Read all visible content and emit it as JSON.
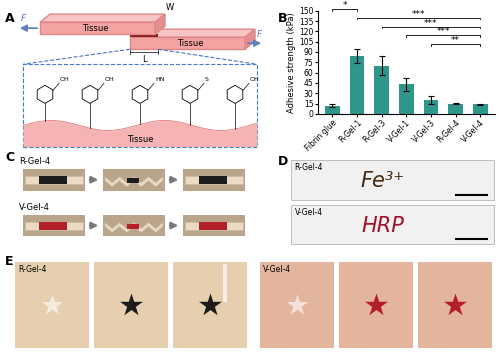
{
  "chart_data": {
    "type": "bar",
    "categories": [
      "Fibrin glue",
      "R-Gel-1",
      "R-Gel-3",
      "V-Gel-1",
      "V-Gel-3",
      "R-Gel-4",
      "V-Gel-4"
    ],
    "values": [
      12,
      84,
      70,
      43,
      20,
      15,
      14
    ],
    "errors": [
      2,
      10,
      14,
      9,
      6,
      1,
      1
    ],
    "color": "#2e968b",
    "ylabel": "Adhesive strength (kPa)",
    "ylim": [
      0,
      150
    ],
    "yticks": [
      0,
      15,
      30,
      45,
      60,
      75,
      90,
      105,
      120,
      135,
      150
    ],
    "significance": [
      {
        "from": "Fibrin glue",
        "to": "R-Gel-1",
        "label": "*"
      },
      {
        "from": "R-Gel-1",
        "to": "V-Gel-4",
        "label": "***"
      },
      {
        "from": "R-Gel-3",
        "to": "V-Gel-4",
        "label": "***"
      },
      {
        "from": "V-Gel-1",
        "to": "V-Gel-4",
        "label": "***"
      },
      {
        "from": "V-Gel-3",
        "to": "V-Gel-4",
        "label": "**"
      }
    ]
  },
  "panels": {
    "letters": [
      "A",
      "B",
      "C",
      "D",
      "E"
    ],
    "A": {
      "force_label": "F",
      "width_label": "W",
      "length_label": "L",
      "tissue_label": "Tissue",
      "chemical_labels": [
        "OH",
        "OH",
        "HN",
        "S",
        "OH"
      ]
    },
    "C": {
      "rows": [
        "R-Gel-4",
        "V-Gel-4"
      ]
    },
    "D": {
      "rows": [
        {
          "label": "R-Gel-4",
          "writing": "Fe³⁺"
        },
        {
          "label": "V-Gel-4",
          "writing": "HRP"
        }
      ]
    },
    "E": {
      "groups": [
        "R-Gel-4",
        "V-Gel-4"
      ]
    }
  }
}
